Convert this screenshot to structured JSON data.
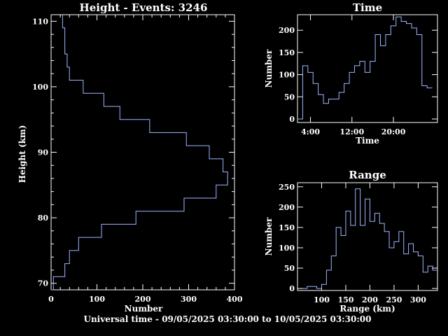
{
  "footer": "Universal time - 09/05/2025 03:30:00 to 10/05/2025 03:30:00",
  "colors": {
    "background": "#000000",
    "axes": "#ffffff",
    "series": "#9fb6ff"
  },
  "chart_data": [
    {
      "type": "bar",
      "orientation": "horizontal",
      "title": "Height - Events: 3246",
      "xlabel": "Number",
      "ylabel": "Height (km)",
      "xlim": [
        0,
        400
      ],
      "ylim": [
        69,
        111
      ],
      "xticks": [
        0,
        100,
        200,
        300,
        400
      ],
      "yticks": [
        70,
        80,
        90,
        100,
        110
      ],
      "bin_edges": [
        69,
        71,
        73,
        75,
        77,
        79,
        81,
        83,
        85,
        87,
        89,
        91,
        93,
        95,
        97,
        99,
        101,
        103,
        105,
        107,
        109,
        111
      ],
      "values": [
        5,
        30,
        40,
        60,
        110,
        185,
        290,
        360,
        385,
        375,
        345,
        295,
        215,
        150,
        115,
        70,
        40,
        35,
        30,
        30,
        25
      ]
    },
    {
      "type": "bar",
      "title": "Time",
      "xlabel": "Time",
      "ylabel": "Number",
      "ylim": [
        0,
        235
      ],
      "xticks": [
        "4:00",
        "12:00",
        "20:00"
      ],
      "tick_hours": [
        4,
        12,
        20
      ],
      "x_range_hours": [
        1.5,
        28.5
      ],
      "bin_edges_hours": [
        1.5,
        2.5,
        3.5,
        4.5,
        5.5,
        6.5,
        7.5,
        8.5,
        9.5,
        10.5,
        11.5,
        12.5,
        13.5,
        14.5,
        15.5,
        16.5,
        17.5,
        18.5,
        19.5,
        20.5,
        21.5,
        22.5,
        23.5,
        24.5,
        25.5,
        26.5,
        27.5
      ],
      "values": [
        0,
        120,
        105,
        80,
        55,
        35,
        45,
        45,
        60,
        80,
        105,
        120,
        130,
        105,
        130,
        190,
        165,
        190,
        210,
        230,
        220,
        215,
        205,
        190,
        75,
        70
      ],
      "yticks": [
        0,
        50,
        100,
        150,
        200
      ]
    },
    {
      "type": "bar",
      "title": "Range",
      "xlabel": "Range (km)",
      "ylabel": "Number",
      "xlim": [
        50,
        340
      ],
      "ylim": [
        -5,
        260
      ],
      "xticks": [
        100,
        150,
        200,
        250,
        300
      ],
      "yticks": [
        0,
        50,
        100,
        150,
        200,
        250
      ],
      "bin_edges": [
        60,
        70,
        80,
        90,
        100,
        110,
        120,
        130,
        140,
        150,
        160,
        170,
        180,
        190,
        200,
        210,
        220,
        230,
        240,
        250,
        260,
        270,
        280,
        290,
        300,
        310,
        320,
        330,
        340
      ],
      "values": [
        0,
        5,
        5,
        0,
        10,
        45,
        80,
        150,
        130,
        190,
        155,
        245,
        155,
        220,
        165,
        185,
        160,
        140,
        100,
        115,
        140,
        85,
        110,
        90,
        80,
        40,
        55,
        45
      ]
    }
  ]
}
